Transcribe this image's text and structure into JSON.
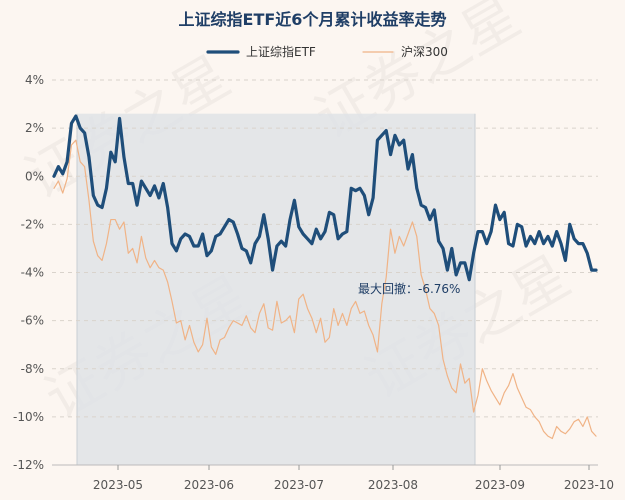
{
  "chart_data": {
    "type": "line",
    "title": "上证综指ETF近6个月累计收益率走势",
    "watermark": "证券之星",
    "y_unit": "%",
    "ylim": [
      -12,
      4
    ],
    "yticks": [
      4,
      2,
      0,
      -2,
      -4,
      -6,
      -8,
      -10,
      -12
    ],
    "ytick_labels": [
      "4%",
      "2%",
      "0%",
      "-2%",
      "-4%",
      "-6%",
      "-8%",
      "-10%",
      "-12%"
    ],
    "x_ticks": [
      "2023-05",
      "2023-06",
      "2023-07",
      "2023-08",
      "2023-09",
      "2023-10"
    ],
    "grid": "horizontal-dashed",
    "legend_position": "top-center",
    "series": [
      {
        "name": "上证综指ETF",
        "color": "#1f4e7a",
        "values": [
          0,
          0.4,
          0.1,
          0.6,
          2.2,
          2.5,
          2.0,
          1.8,
          0.8,
          -0.8,
          -1.2,
          -1.3,
          -0.5,
          1.0,
          0.6,
          2.4,
          0.8,
          -0.3,
          -0.3,
          -1.2,
          -0.2,
          -0.5,
          -0.8,
          -0.4,
          -0.9,
          -0.3,
          -1.3,
          -2.8,
          -3.1,
          -2.6,
          -2.4,
          -2.5,
          -2.9,
          -2.9,
          -2.4,
          -3.3,
          -3.1,
          -2.5,
          -2.4,
          -2.1,
          -1.8,
          -1.9,
          -2.4,
          -3.0,
          -3.1,
          -3.6,
          -2.8,
          -2.5,
          -1.6,
          -2.6,
          -3.9,
          -2.9,
          -2.7,
          -2.9,
          -1.8,
          -1.0,
          -2.1,
          -2.4,
          -2.6,
          -2.8,
          -2.2,
          -2.6,
          -2.3,
          -1.5,
          -1.6,
          -2.6,
          -2.4,
          -2.3,
          -0.5,
          -0.6,
          -0.5,
          -0.8,
          -1.6,
          -0.9,
          1.5,
          1.7,
          1.9,
          0.9,
          1.7,
          1.3,
          1.5,
          0.3,
          0.9,
          -0.5,
          -1.2,
          -1.3,
          -1.8,
          -1.4,
          -2.7,
          -3.0,
          -3.9,
          -3.0,
          -4.1,
          -3.6,
          -3.6,
          -4.3,
          -3.2,
          -2.3,
          -2.3,
          -2.8,
          -2.3,
          -1.2,
          -1.8,
          -1.5,
          -2.8,
          -2.9,
          -2.0,
          -2.1,
          -2.9,
          -2.5,
          -2.8,
          -2.3,
          -2.8,
          -2.5,
          -2.9,
          -2.3,
          -2.8,
          -3.5,
          -2.0,
          -2.6,
          -2.8,
          -2.8,
          -3.2,
          -3.9,
          -3.9
        ]
      },
      {
        "name": "沪深300",
        "color": "#f0b386",
        "values": [
          -0.5,
          -0.2,
          -0.7,
          -0.1,
          1.3,
          1.5,
          0.6,
          0.4,
          -1.0,
          -2.7,
          -3.3,
          -3.5,
          -2.8,
          -1.8,
          -1.8,
          -2.2,
          -1.9,
          -3.2,
          -3.0,
          -3.6,
          -2.5,
          -3.4,
          -3.8,
          -3.5,
          -3.8,
          -3.9,
          -4.4,
          -5.2,
          -6.1,
          -6.0,
          -6.8,
          -6.2,
          -6.9,
          -7.3,
          -7.0,
          -5.9,
          -7.1,
          -7.4,
          -6.8,
          -6.7,
          -6.3,
          -6.0,
          -6.1,
          -6.2,
          -5.8,
          -6.3,
          -6.5,
          -5.7,
          -5.3,
          -6.3,
          -6.4,
          -5.2,
          -6.1,
          -6.0,
          -5.8,
          -6.5,
          -5.1,
          -4.9,
          -5.5,
          -5.9,
          -6.5,
          -5.9,
          -6.9,
          -6.7,
          -5.5,
          -6.2,
          -5.7,
          -6.2,
          -5.5,
          -5.2,
          -5.7,
          -5.6,
          -6.2,
          -6.6,
          -7.3,
          -5.3,
          -4.2,
          -2.2,
          -3.2,
          -2.5,
          -2.9,
          -2.4,
          -1.9,
          -2.5,
          -4.1,
          -4.7,
          -5.5,
          -5.7,
          -6.2,
          -7.6,
          -8.3,
          -8.8,
          -9.0,
          -7.8,
          -8.6,
          -8.4,
          -9.8,
          -9.1,
          -8.0,
          -8.5,
          -8.9,
          -9.2,
          -9.5,
          -9.0,
          -8.7,
          -8.2,
          -8.8,
          -9.2,
          -9.6,
          -9.7,
          -10.0,
          -10.2,
          -10.6,
          -10.8,
          -10.9,
          -10.4,
          -10.6,
          -10.7,
          -10.5,
          -10.2,
          -10.1,
          -10.4,
          -10.0,
          -10.6,
          -10.8
        ]
      }
    ],
    "max_drawdown": {
      "label": "最大回撤：-6.76%",
      "series": "上证综指ETF",
      "start_month_fraction": "2023-04-25",
      "end_month_fraction": "2023-08-25"
    }
  }
}
